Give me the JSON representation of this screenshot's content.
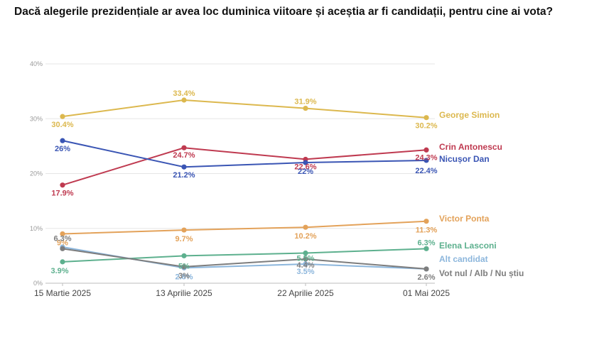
{
  "title": "Dacă alegerile prezidențiale ar avea loc duminica viitoare și aceștia ar fi candidații, pentru cine ai vota?",
  "chart_data": {
    "type": "line",
    "title": "Dacă alegerile prezidențiale ar avea loc duminica viitoare și aceștia ar fi candidații, pentru cine ai vota?",
    "xlabel": "",
    "ylabel": "",
    "x": [
      "15 Martie 2025",
      "13 Aprilie 2025",
      "22 Aprilie 2025",
      "01 Mai 2025"
    ],
    "yticks": [
      "0%",
      "10%",
      "20%",
      "30%",
      "40%"
    ],
    "ylim": [
      0,
      40
    ],
    "grid": true,
    "legend": "inline-right",
    "series": [
      {
        "name": "George Simion",
        "color": "#dcb84e",
        "values": [
          30.4,
          33.4,
          31.9,
          30.2
        ],
        "labels": [
          "30.4%",
          "33.4%",
          "31.9%",
          "30.2%"
        ]
      },
      {
        "name": "Crin Antonescu",
        "color": "#bf3a50",
        "values": [
          17.9,
          24.7,
          22.6,
          24.3
        ],
        "labels": [
          "17.9%",
          "24.7%",
          "22.6%",
          "24.3%"
        ]
      },
      {
        "name": "Nicușor Dan",
        "color": "#3a55b4",
        "values": [
          26,
          21.2,
          22,
          22.4
        ],
        "labels": [
          "26%",
          "21.2%",
          "22%",
          "22.4%"
        ]
      },
      {
        "name": "Victor Ponta",
        "color": "#e3a25a",
        "values": [
          9,
          9.7,
          10.2,
          11.3
        ],
        "labels": [
          "9%",
          "9.7%",
          "10.2%",
          "11.3%"
        ]
      },
      {
        "name": "Elena Lasconi",
        "color": "#5db08e",
        "values": [
          3.9,
          5,
          5.5,
          6.3
        ],
        "labels": [
          "3.9%",
          "5%",
          "5.5%",
          "6.3%"
        ]
      },
      {
        "name": "Alt candidat",
        "color": "#8cb6dc",
        "values": [
          6.6,
          2.8,
          3.5,
          2.6
        ],
        "labels": [
          "",
          "2.8%",
          "3.5%",
          ""
        ]
      },
      {
        "name": "Vot nul / Alb / Nu știu",
        "color": "#7d7d7d",
        "values": [
          6.3,
          3,
          4.4,
          2.6
        ],
        "labels": [
          "6.3%",
          "3%",
          "4.4%",
          "2.6%"
        ]
      }
    ]
  }
}
